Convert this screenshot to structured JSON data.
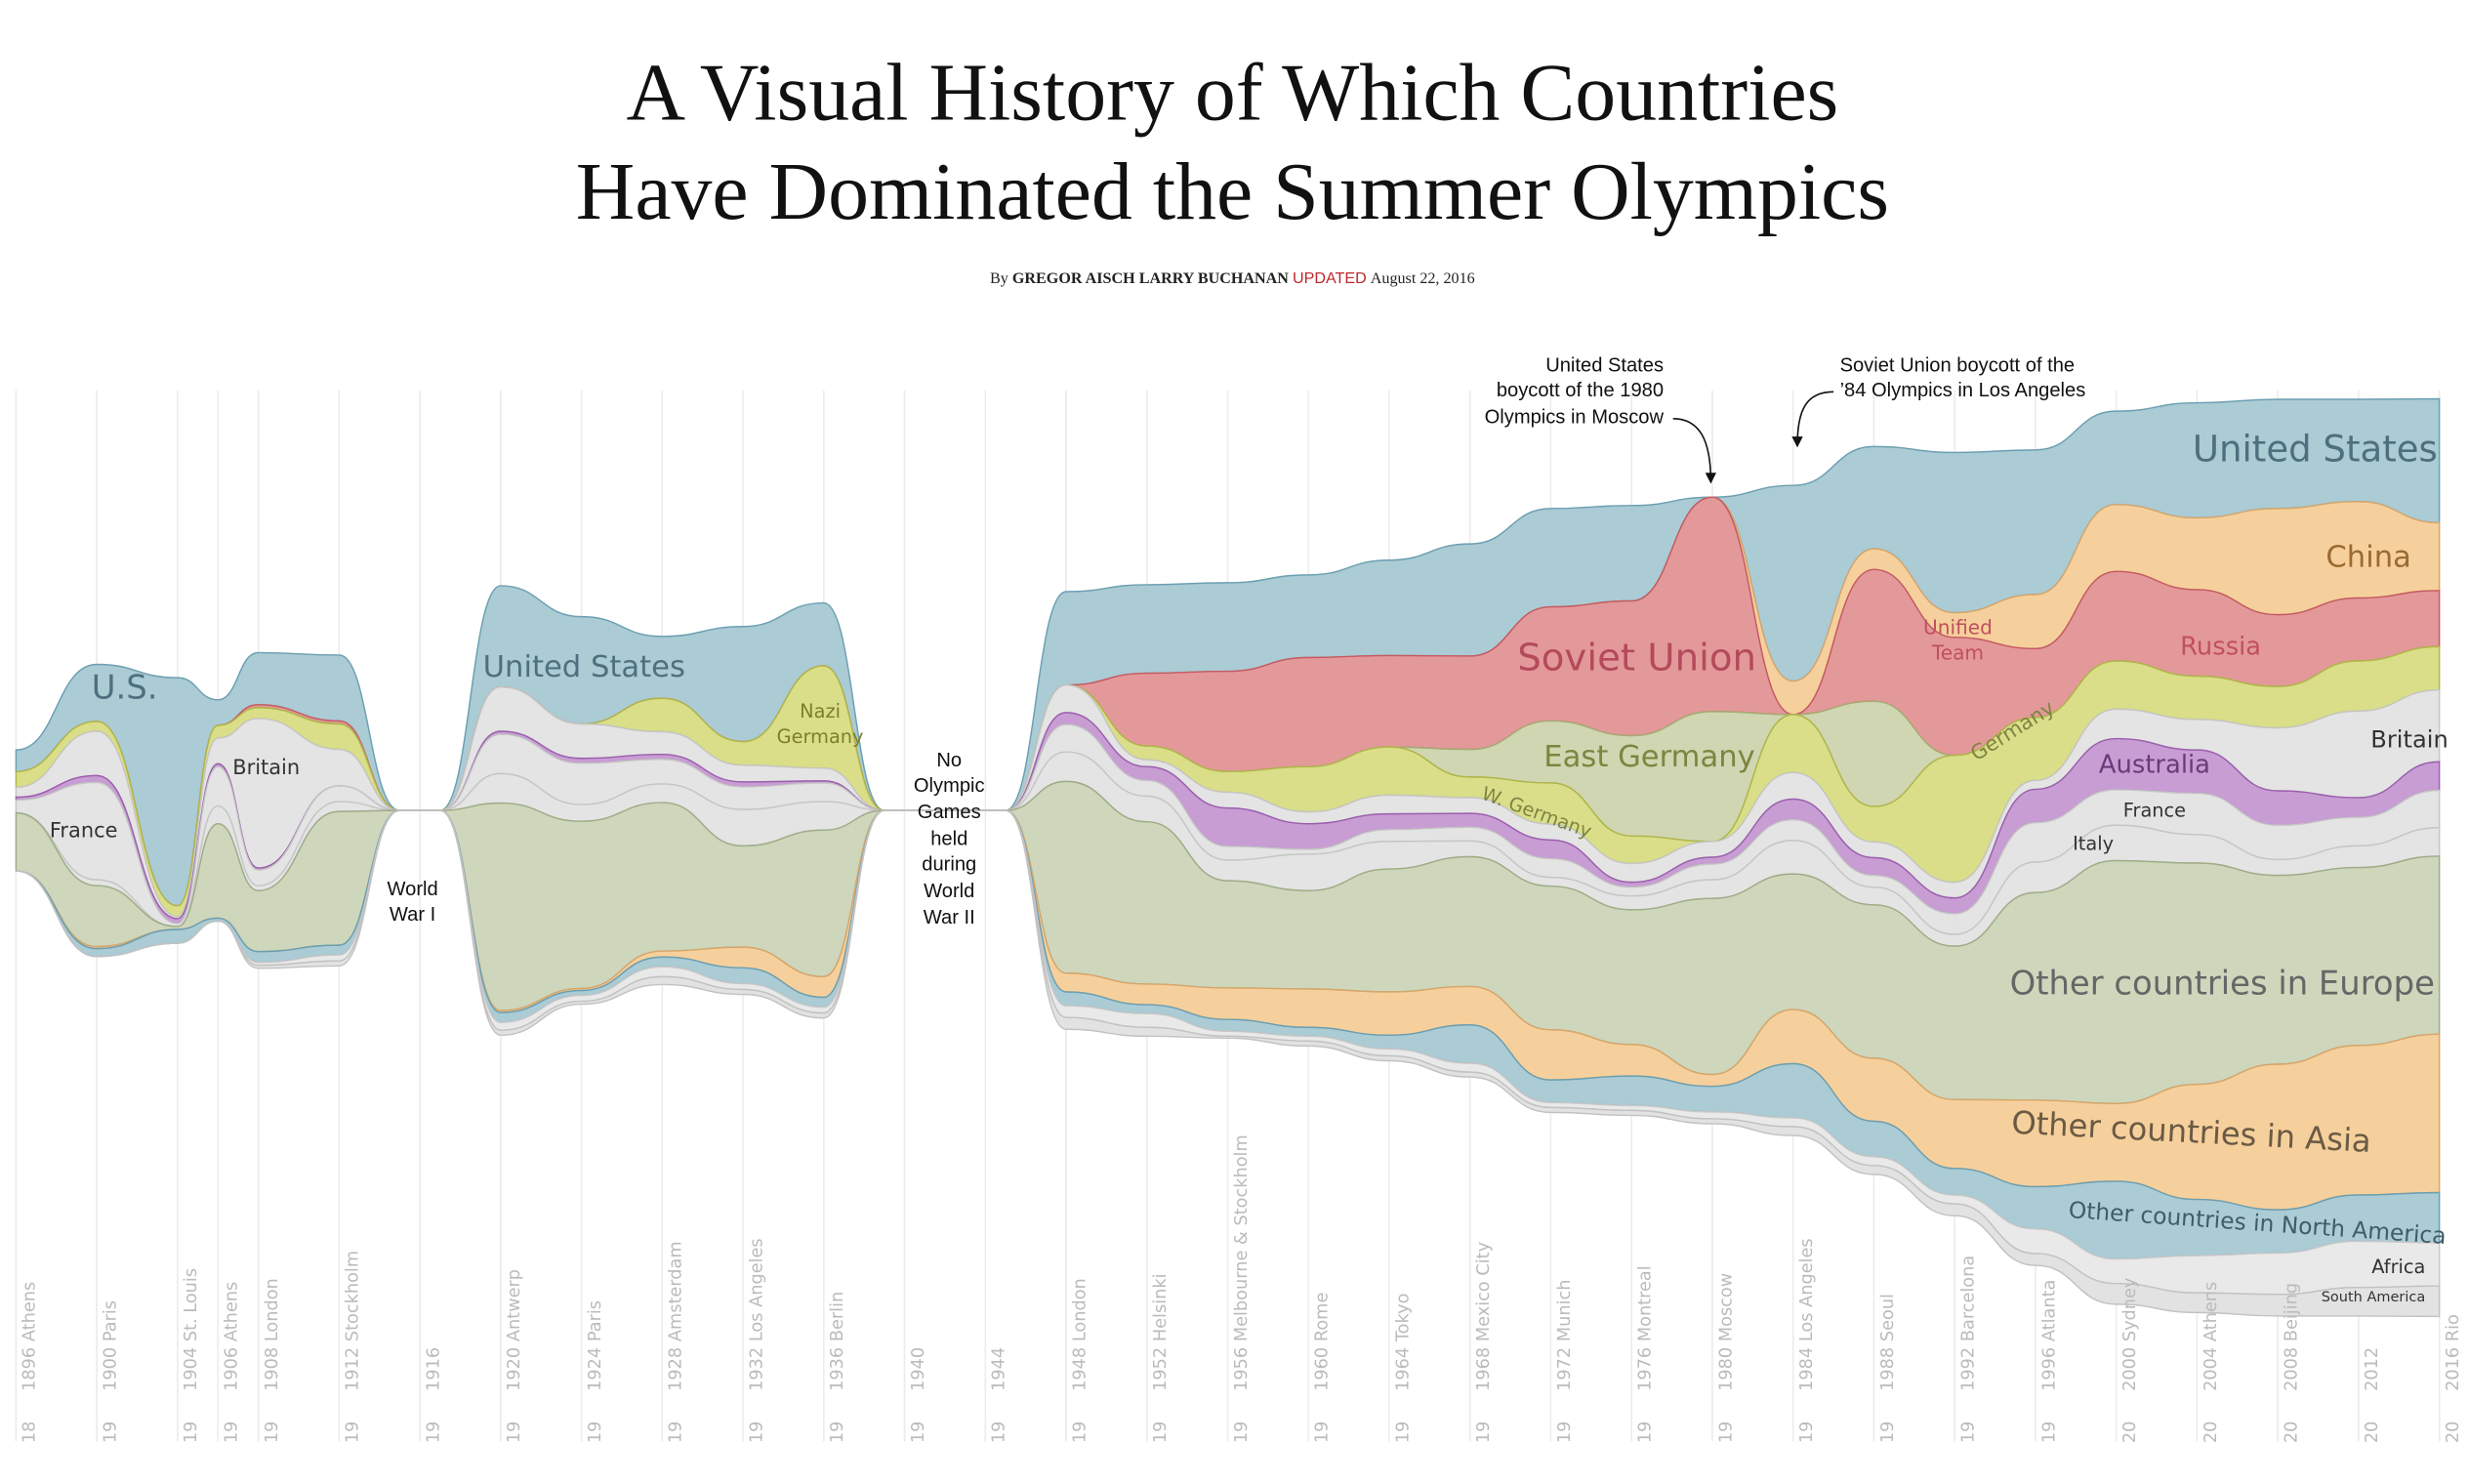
{
  "header": {
    "title_line1": "A Visual History of Which Countries",
    "title_line2": "Have Dominated the Summer Olympics",
    "byline": {
      "prefix": "By",
      "authors": "GREGOR AISCH LARRY BUCHANAN",
      "updated_label": "UPDATED",
      "date": "August 22, 2016"
    }
  },
  "colors": {
    "updated_red": "#c0262d",
    "us_blue": "#a7c8d3",
    "soviet_red": "#e29393",
    "germany_yellow": "#d8dc83",
    "europe_olive": "#cbd4b8",
    "asia_orange": "#f5cd97",
    "australia_purple": "#c598d1",
    "neutral_gray": "#e3e3e3"
  },
  "chart_data": {
    "type": "area",
    "layout": "streamgraph",
    "value_unit": "medals (approx.)",
    "x": [
      1896,
      1900,
      1904,
      1906,
      1908,
      1912,
      1920,
      1924,
      1928,
      1932,
      1936,
      1948,
      1952,
      1956,
      1960,
      1964,
      1968,
      1972,
      1976,
      1980,
      1984,
      1988,
      1992,
      1996,
      2000,
      2004,
      2008,
      2012,
      2016
    ],
    "series": [
      {
        "name": "United States",
        "color": "#a7c8d3",
        "stroke": "#6b9fb1",
        "values": [
          22,
          58,
          232,
          26,
          53,
          67,
          103,
          109,
          63,
          117,
          64,
          95,
          90,
          90,
          84,
          97,
          114,
          100,
          97,
          0,
          199,
          104,
          163,
          147,
          95,
          117,
          111,
          104,
          126
        ]
      },
      {
        "name": "China",
        "color": "#f5cd97",
        "stroke": "#d6a66a",
        "values": [
          0,
          0,
          0,
          0,
          0,
          0,
          0,
          0,
          0,
          0,
          0,
          0,
          0,
          0,
          0,
          0,
          0,
          0,
          0,
          0,
          34,
          21,
          25,
          55,
          68,
          73,
          108,
          98,
          69
        ]
      },
      {
        "name": "Soviet Union",
        "color": "#e29393",
        "stroke": "#c45a64",
        "values": [
          0,
          0,
          0,
          0,
          3,
          3,
          0,
          0,
          0,
          0,
          0,
          0,
          74,
          102,
          111,
          93,
          95,
          116,
          137,
          218,
          0,
          134,
          120,
          70,
          91,
          88,
          73,
          64,
          57
        ]
      },
      {
        "name": "East Germany",
        "color": "#cdd4ad",
        "stroke": "#a4ad72",
        "values": [
          0,
          0,
          0,
          0,
          0,
          0,
          0,
          0,
          0,
          0,
          0,
          0,
          0,
          0,
          0,
          0,
          28,
          63,
          102,
          132,
          0,
          107,
          0,
          0,
          0,
          0,
          0,
          0,
          0
        ]
      },
      {
        "name": "Germany",
        "color": "#d8dc83",
        "stroke": "#b0b64a",
        "values": [
          16,
          10,
          11,
          13,
          11,
          26,
          0,
          0,
          34,
          24,
          104,
          0,
          14,
          21,
          46,
          49,
          21,
          42,
          28,
          0,
          59,
          36,
          129,
          64,
          49,
          44,
          42,
          51,
          44
        ]
      },
      {
        "name": "Britain",
        "color": "#e3e3e3",
        "stroke": "#c6c6c6",
        "values": [
          10,
          45,
          2,
          26,
          152,
          37,
          45,
          35,
          23,
          17,
          13,
          28,
          7,
          16,
          12,
          19,
          16,
          16,
          19,
          16,
          27,
          16,
          16,
          9,
          30,
          31,
          64,
          88,
          73
        ]
      },
      {
        "name": "Australia",
        "color": "#c598d1",
        "stroke": "#9b5fae",
        "values": [
          3,
          7,
          5,
          3,
          2,
          0,
          3,
          5,
          5,
          5,
          2,
          12,
          14,
          39,
          26,
          16,
          14,
          19,
          5,
          7,
          21,
          18,
          16,
          34,
          52,
          44,
          35,
          20,
          29
        ]
      },
      {
        "name": "France",
        "color": "#e3e3e3",
        "stroke": "#c6c6c6",
        "values": [
          13,
          99,
          3,
          40,
          16,
          16,
          40,
          42,
          25,
          23,
          19,
          28,
          16,
          14,
          5,
          12,
          14,
          19,
          9,
          16,
          21,
          12,
          21,
          40,
          36,
          42,
          35,
          29,
          38
        ]
      },
      {
        "name": "Italy",
        "color": "#e3e3e3",
        "stroke": "#c6c6c6",
        "values": [
          0,
          6,
          0,
          18,
          5,
          10,
          30,
          17,
          19,
          37,
          29,
          30,
          26,
          21,
          37,
          28,
          16,
          9,
          14,
          19,
          34,
          18,
          12,
          31,
          36,
          29,
          16,
          22,
          29
        ]
      },
      {
        "name": "Other countries in Europe",
        "color": "#cbd4b8",
        "stroke": "#9fac86",
        "values": [
          59,
          62,
          3,
          96,
          62,
          136,
          211,
          170,
          151,
          103,
          149,
          195,
          165,
          109,
          100,
          125,
          132,
          146,
          137,
          179,
          138,
          156,
          156,
          211,
          247,
          225,
          192,
          181,
          181
        ]
      },
      {
        "name": "Other countries in Asia",
        "color": "#f5cd97",
        "stroke": "#d6a66a",
        "values": [
          0,
          2,
          0,
          0,
          0,
          0,
          2,
          2,
          6,
          21,
          21,
          19,
          21,
          32,
          39,
          44,
          39,
          51,
          32,
          12,
          55,
          64,
          70,
          88,
          79,
          117,
          148,
          152,
          161
        ]
      },
      {
        "name": "Other countries in North America",
        "color": "#a7c8d3",
        "stroke": "#6b9fb1",
        "values": [
          0,
          8,
          14,
          3,
          11,
          10,
          10,
          5,
          10,
          16,
          10,
          14,
          9,
          12,
          9,
          14,
          39,
          23,
          30,
          26,
          55,
          36,
          27,
          43,
          79,
          57,
          44,
          47,
          51
        ]
      },
      {
        "name": "Africa",
        "color": "#e8e8e8",
        "stroke": "#c8c8c8",
        "values": [
          0,
          0,
          0,
          0,
          3,
          6,
          8,
          6,
          10,
          6,
          6,
          12,
          14,
          5,
          5,
          7,
          9,
          5,
          5,
          7,
          9,
          9,
          9,
          25,
          25,
          38,
          42,
          47,
          44
        ]
      },
      {
        "name": "South America",
        "color": "#e0e0e0",
        "stroke": "#c2c2c2",
        "values": [
          0,
          0,
          0,
          0,
          3,
          5,
          5,
          3,
          8,
          5,
          5,
          12,
          9,
          2,
          5,
          5,
          5,
          5,
          5,
          5,
          9,
          9,
          12,
          12,
          21,
          20,
          22,
          29,
          31
        ]
      }
    ],
    "axis_labels": [
      "1896 Athens",
      "1900 Paris",
      "1904 St. Louis",
      "1906 Athens",
      "1908 London",
      "1912 Stockholm",
      "1916",
      "1920 Antwerp",
      "1924 Paris",
      "1928 Amsterdam",
      "1932 Los Angeles",
      "1936 Berlin",
      "1940",
      "1944",
      "1948 London",
      "1952 Helsinki",
      "1956 Melbourne & Stockholm",
      "1960 Rome",
      "1964 Tokyo",
      "1968 Mexico City",
      "1972 Munich",
      "1976 Montreal",
      "1980 Moscow",
      "1984 Los Angeles",
      "1988 Seoul",
      "1992 Barcelona",
      "1996 Atlanta",
      "2000 Sydney",
      "2004 Athens",
      "2008 Beijing",
      "2012",
      "2016 Rio"
    ],
    "stream_labels": {
      "us_early": "U.S.",
      "france_early": "France",
      "britain_early": "Britain",
      "us_interwar": "United States",
      "nazi_germany_1": "Nazi",
      "nazi_germany_2": "Germany",
      "soviet_union": "Soviet Union",
      "east_germany": "East Germany",
      "w_germany": "W. Germany",
      "unified_team_1": "Unified",
      "unified_team_2": "Team",
      "germany": "Germany",
      "united_states": "United States",
      "china": "China",
      "russia": "Russia",
      "britain": "Britain",
      "australia": "Australia",
      "france": "France",
      "italy": "Italy",
      "europe": "Other countries in Europe",
      "asia": "Other countries in Asia",
      "north_america": "Other countries in North America",
      "africa": "Africa",
      "south_america": "South America"
    },
    "annotations": {
      "ww1": [
        "World",
        "War I"
      ],
      "ww2": [
        "No",
        "Olympic",
        "Games",
        "held",
        "during",
        "World",
        "War II"
      ],
      "us_boycott": [
        "United States",
        "boycott of the 1980",
        "Olympics in Moscow"
      ],
      "soviet_boycott": [
        "Soviet Union boycott of the",
        "’84 Olympics in Los Angeles"
      ]
    }
  }
}
